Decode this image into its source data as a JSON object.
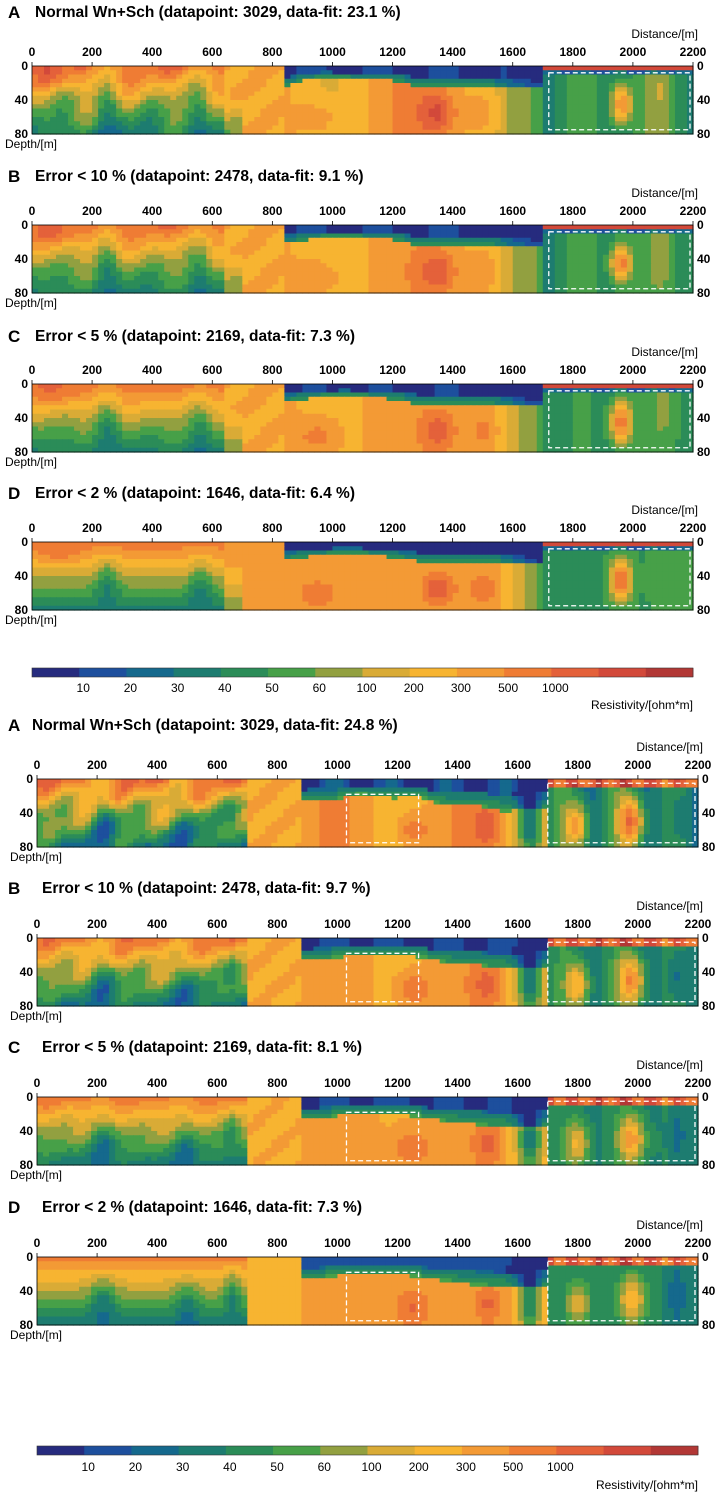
{
  "palette": [
    "#262b7e",
    "#1d4f9d",
    "#15698d",
    "#1d7c70",
    "#2b8c58",
    "#47a048",
    "#92a040",
    "#d9ab36",
    "#f7b431",
    "#f39a35",
    "#ef7c34",
    "#e4613a",
    "#d2493a",
    "#b23735"
  ],
  "chart_data": [
    {
      "type": "heatmap",
      "figure": "top",
      "colorbar": {
        "ticks": [
          "10",
          "20",
          "30",
          "40",
          "50",
          "60",
          "100",
          "200",
          "300",
          "500",
          "1000"
        ],
        "label": "Resistivity/[ohm*m]"
      },
      "panels": [
        {
          "letter": "A",
          "title": "Normal Wn+Sch (datapoint: 3029, data-fit: 23.1 %)",
          "xlabel": "Distance/[m]",
          "ylabel": "Depth/[m]",
          "xticks": [
            "0",
            "200",
            "400",
            "600",
            "800",
            "1000",
            "1200",
            "1400",
            "1600",
            "1800",
            "2000",
            "2200"
          ],
          "yticks": [
            "0",
            "40",
            "80"
          ],
          "xlim": [
            0,
            2200
          ],
          "ylim": [
            0,
            80
          ],
          "boxes": [
            {
              "x0": 1720,
              "x1": 2190,
              "z0": 8,
              "z1": 75
            }
          ]
        },
        {
          "letter": "B",
          "title": "Error < 10 % (datapoint: 2478, data-fit: 9.1 %)",
          "xlabel": "Distance/[m]",
          "ylabel": "Depth/[m]",
          "xticks": [
            "0",
            "200",
            "400",
            "600",
            "800",
            "1000",
            "1200",
            "1400",
            "1600",
            "1800",
            "2000",
            "2200"
          ],
          "yticks": [
            "0",
            "40",
            "80"
          ],
          "xlim": [
            0,
            2200
          ],
          "ylim": [
            0,
            80
          ],
          "boxes": [
            {
              "x0": 1720,
              "x1": 2190,
              "z0": 8,
              "z1": 75
            }
          ]
        },
        {
          "letter": "C",
          "title": "Error < 5 % (datapoint: 2169, data-fit: 7.3 %)",
          "xlabel": "Distance/[m]",
          "ylabel": "Depth/[m]",
          "xticks": [
            "0",
            "200",
            "400",
            "600",
            "800",
            "1000",
            "1200",
            "1400",
            "1600",
            "1800",
            "2000",
            "2200"
          ],
          "yticks": [
            "0",
            "40",
            "80"
          ],
          "xlim": [
            0,
            2200
          ],
          "ylim": [
            0,
            80
          ],
          "boxes": [
            {
              "x0": 1720,
              "x1": 2190,
              "z0": 8,
              "z1": 75
            }
          ]
        },
        {
          "letter": "D",
          "title": "Error < 2 % (datapoint: 1646, data-fit: 6.4 %)",
          "xlabel": "Distance/[m]",
          "ylabel": "Depth/[m]",
          "xticks": [
            "0",
            "200",
            "400",
            "600",
            "800",
            "1000",
            "1200",
            "1400",
            "1600",
            "1800",
            "2000",
            "2200"
          ],
          "yticks": [
            "0",
            "40",
            "80"
          ],
          "xlim": [
            0,
            2200
          ],
          "ylim": [
            0,
            80
          ],
          "boxes": [
            {
              "x0": 1720,
              "x1": 2190,
              "z0": 8,
              "z1": 75
            }
          ]
        }
      ]
    },
    {
      "type": "heatmap",
      "figure": "bottom",
      "colorbar": {
        "ticks": [
          "10",
          "20",
          "30",
          "40",
          "50",
          "60",
          "100",
          "200",
          "300",
          "500",
          "1000"
        ],
        "label": "Resistivity/[ohm*m]"
      },
      "panels": [
        {
          "letter": "A",
          "title": "Normal Wn+Sch (datapoint: 3029, data-fit: 24.8 %)",
          "xlabel": "Distance/[m]",
          "ylabel": "Depth/[m]",
          "xticks": [
            "0",
            "200",
            "400",
            "600",
            "800",
            "1000",
            "1200",
            "1400",
            "1600",
            "1800",
            "2000",
            "2200"
          ],
          "yticks": [
            "0",
            "40",
            "80"
          ],
          "xlim": [
            0,
            2200
          ],
          "ylim": [
            0,
            80
          ],
          "boxes": [
            {
              "x0": 1030,
              "x1": 1270,
              "z0": 18,
              "z1": 75
            },
            {
              "x0": 1700,
              "x1": 2190,
              "z0": 5,
              "z1": 75
            }
          ]
        },
        {
          "letter": "B",
          "title": "Error < 10 % (datapoint: 2478, data-fit: 9.7 %)",
          "xlabel": "Distance/[m]",
          "ylabel": "Depth/[m]",
          "xticks": [
            "0",
            "200",
            "400",
            "600",
            "800",
            "1000",
            "1200",
            "1400",
            "1600",
            "1800",
            "2000",
            "2200"
          ],
          "yticks": [
            "0",
            "40",
            "80"
          ],
          "xlim": [
            0,
            2200
          ],
          "ylim": [
            0,
            80
          ],
          "boxes": [
            {
              "x0": 1030,
              "x1": 1270,
              "z0": 18,
              "z1": 75
            },
            {
              "x0": 1700,
              "x1": 2190,
              "z0": 5,
              "z1": 75
            }
          ]
        },
        {
          "letter": "C",
          "title": "Error < 5 % (datapoint: 2169, data-fit: 8.1 %)",
          "xlabel": "Distance/[m]",
          "ylabel": "Depth/[m]",
          "xticks": [
            "0",
            "200",
            "400",
            "600",
            "800",
            "1000",
            "1200",
            "1400",
            "1600",
            "1800",
            "2000",
            "2200"
          ],
          "yticks": [
            "0",
            "40",
            "80"
          ],
          "xlim": [
            0,
            2200
          ],
          "ylim": [
            0,
            80
          ],
          "boxes": [
            {
              "x0": 1030,
              "x1": 1270,
              "z0": 18,
              "z1": 75
            },
            {
              "x0": 1700,
              "x1": 2190,
              "z0": 5,
              "z1": 75
            }
          ]
        },
        {
          "letter": "D",
          "title": "Error < 2 % (datapoint: 1646, data-fit: 7.3 %)",
          "xlabel": "Distance/[m]",
          "ylabel": "Depth/[m]",
          "xticks": [
            "0",
            "200",
            "400",
            "600",
            "800",
            "1000",
            "1200",
            "1400",
            "1600",
            "1800",
            "2000",
            "2200"
          ],
          "yticks": [
            "0",
            "40",
            "80"
          ],
          "xlim": [
            0,
            2200
          ],
          "ylim": [
            0,
            80
          ],
          "boxes": [
            {
              "x0": 1030,
              "x1": 1270,
              "z0": 18,
              "z1": 75
            },
            {
              "x0": 1700,
              "x1": 2190,
              "z0": 5,
              "z1": 75
            }
          ]
        }
      ]
    }
  ]
}
